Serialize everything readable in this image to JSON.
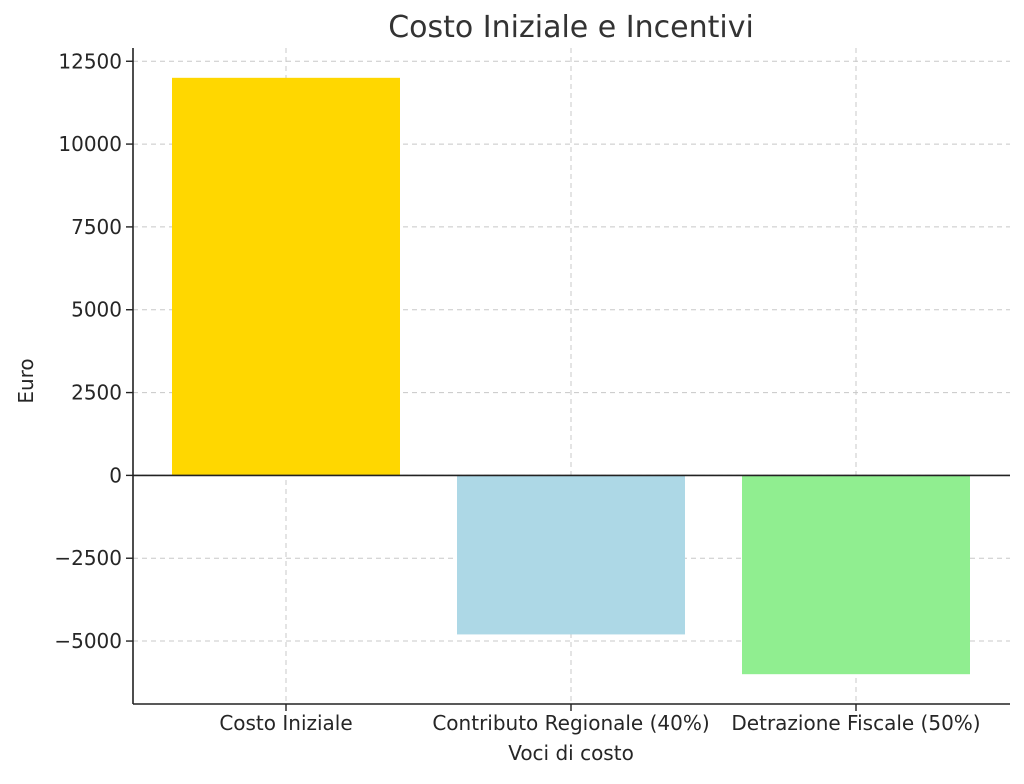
{
  "chart_data": {
    "type": "bar",
    "title": "Costo Iniziale e Incentivi",
    "xlabel": "Voci di costo",
    "ylabel": "Euro",
    "categories": [
      "Costo Iniziale",
      "Contributo Regionale (40%)",
      "Detrazione Fiscale (50%)"
    ],
    "values": [
      12000,
      -4800,
      -6000
    ],
    "colors": [
      "#ffd700",
      "#add8e6",
      "#90ee90"
    ],
    "ylim": [
      -6900,
      12900
    ],
    "yticks": [
      -5000,
      -2500,
      0,
      2500,
      5000,
      7500,
      10000,
      12500
    ],
    "ytick_labels": [
      "−5000",
      "−2500",
      "0",
      "2500",
      "5000",
      "7500",
      "10000",
      "12500"
    ],
    "grid": true,
    "zero_line": true
  }
}
